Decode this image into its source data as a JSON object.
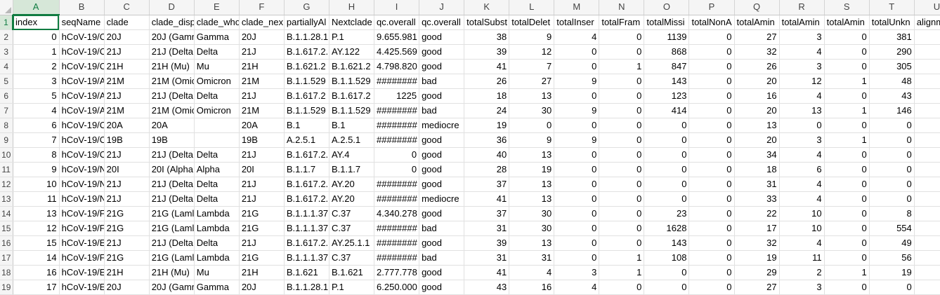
{
  "columns": [
    "A",
    "B",
    "C",
    "D",
    "E",
    "F",
    "G",
    "H",
    "I",
    "J",
    "K",
    "L",
    "M",
    "N",
    "O",
    "P",
    "Q",
    "R",
    "S",
    "T",
    "U"
  ],
  "selected_column": "A",
  "selected_row": "1",
  "rows": [
    {
      "n": "1",
      "cells": [
        "index",
        "seqName",
        "clade",
        "clade_disp",
        "clade_who",
        "clade_nex",
        "partiallyAl",
        "Nextclade",
        "qc.overall",
        "qc.overall",
        "totalSubst",
        "totalDelet",
        "totalInser",
        "totalFram",
        "totalMissi",
        "totalNonA",
        "totalAmin",
        "totalAmin",
        "totalAmin",
        "totalUnkn",
        "alignm"
      ]
    },
    {
      "n": "2",
      "cells": [
        "0",
        "hCoV-19/C",
        "20J",
        "20J (Gamr",
        "Gamma",
        "20J",
        "B.1.1.28.1",
        "P.1",
        "9.655.981",
        "good",
        "38",
        "9",
        "4",
        "0",
        "1139",
        "0",
        "27",
        "3",
        "0",
        "381",
        "87"
      ]
    },
    {
      "n": "3",
      "cells": [
        "1",
        "hCoV-19/C",
        "21J",
        "21J (Delta",
        "Delta",
        "21J",
        "B.1.617.2.",
        "AY.122",
        "4.425.569",
        "good",
        "39",
        "12",
        "0",
        "0",
        "868",
        "0",
        "32",
        "4",
        "0",
        "290",
        "88"
      ]
    },
    {
      "n": "4",
      "cells": [
        "2",
        "hCoV-19/C",
        "21H",
        "21H (Mu)",
        "Mu",
        "21H",
        "B.1.621.2",
        "B.1.621.2",
        "4.798.820",
        "good",
        "41",
        "7",
        "0",
        "1",
        "847",
        "0",
        "26",
        "3",
        "0",
        "305",
        "88"
      ]
    },
    {
      "n": "5",
      "cells": [
        "3",
        "hCoV-19/A",
        "21M",
        "21M (Omic",
        "Omicron",
        "21M",
        "B.1.1.529",
        "B.1.1.529",
        "########",
        "bad",
        "26",
        "27",
        "9",
        "0",
        "143",
        "0",
        "20",
        "12",
        "1",
        "48",
        "89"
      ]
    },
    {
      "n": "6",
      "cells": [
        "5",
        "hCoV-19/A",
        "21J",
        "21J (Delta",
        "Delta",
        "21J",
        "B.1.617.2",
        "B.1.617.2",
        "1225",
        "good",
        "18",
        "13",
        "0",
        "0",
        "123",
        "0",
        "16",
        "4",
        "0",
        "43",
        "89"
      ]
    },
    {
      "n": "7",
      "cells": [
        "4",
        "hCoV-19/A",
        "21M",
        "21M (Omic",
        "Omicron",
        "21M",
        "B.1.1.529",
        "B.1.1.529",
        "########",
        "bad",
        "24",
        "30",
        "9",
        "0",
        "414",
        "0",
        "20",
        "13",
        "1",
        "146",
        "88"
      ]
    },
    {
      "n": "8",
      "cells": [
        "6",
        "hCoV-19/C",
        "20A",
        "20A",
        "",
        "20A",
        "B.1",
        "B.1",
        "########",
        "mediocre",
        "19",
        "0",
        "0",
        "0",
        "0",
        "0",
        "13",
        "0",
        "0",
        "0",
        "89"
      ]
    },
    {
      "n": "9",
      "cells": [
        "7",
        "hCoV-19/C",
        "19B",
        "19B",
        "",
        "19B",
        "A.2.5.1",
        "A.2.5.1",
        "########",
        "good",
        "36",
        "9",
        "9",
        "0",
        "0",
        "0",
        "20",
        "3",
        "1",
        "0",
        "89"
      ]
    },
    {
      "n": "10",
      "cells": [
        "8",
        "hCoV-19/C",
        "21J",
        "21J (Delta",
        "Delta",
        "21J",
        "B.1.617.2.",
        "AY.4",
        "0",
        "good",
        "40",
        "13",
        "0",
        "0",
        "0",
        "0",
        "34",
        "4",
        "0",
        "0",
        "89"
      ]
    },
    {
      "n": "11",
      "cells": [
        "9",
        "hCoV-19/N",
        "20I",
        "20I (Alpha",
        "Alpha",
        "20I",
        "B.1.1.7",
        "B.1.1.7",
        "0",
        "good",
        "28",
        "19",
        "0",
        "0",
        "0",
        "0",
        "18",
        "6",
        "0",
        "0",
        "89"
      ]
    },
    {
      "n": "12",
      "cells": [
        "10",
        "hCoV-19/N",
        "21J",
        "21J (Delta",
        "Delta",
        "21J",
        "B.1.617.2.",
        "AY.20",
        "########",
        "good",
        "37",
        "13",
        "0",
        "0",
        "0",
        "0",
        "31",
        "4",
        "0",
        "0",
        "89"
      ]
    },
    {
      "n": "13",
      "cells": [
        "11",
        "hCoV-19/N",
        "21J",
        "21J (Delta",
        "Delta",
        "21J",
        "B.1.617.2.",
        "AY.20",
        "########",
        "mediocre",
        "41",
        "13",
        "0",
        "0",
        "0",
        "0",
        "33",
        "4",
        "0",
        "0",
        "89"
      ]
    },
    {
      "n": "14",
      "cells": [
        "13",
        "hCoV-19/F",
        "21G",
        "21G (Laml",
        "Lambda",
        "21G",
        "B.1.1.1.37",
        "C.37",
        "4.340.278",
        "good",
        "37",
        "30",
        "0",
        "0",
        "23",
        "0",
        "22",
        "10",
        "0",
        "8",
        "89"
      ]
    },
    {
      "n": "15",
      "cells": [
        "12",
        "hCoV-19/F",
        "21G",
        "21G (Laml",
        "Lambda",
        "21G",
        "B.1.1.1.37",
        "C.37",
        "########",
        "bad",
        "31",
        "30",
        "0",
        "0",
        "1628",
        "0",
        "17",
        "10",
        "0",
        "554",
        "87"
      ]
    },
    {
      "n": "16",
      "cells": [
        "15",
        "hCoV-19/E",
        "21J",
        "21J (Delta",
        "Delta",
        "21J",
        "B.1.617.2.",
        "AY.25.1.1",
        "########",
        "good",
        "39",
        "13",
        "0",
        "0",
        "143",
        "0",
        "32",
        "4",
        "0",
        "49",
        "89"
      ]
    },
    {
      "n": "17",
      "cells": [
        "14",
        "hCoV-19/F",
        "21G",
        "21G (Laml",
        "Lambda",
        "21G",
        "B.1.1.1.37",
        "C.37",
        "########",
        "bad",
        "31",
        "31",
        "0",
        "1",
        "108",
        "0",
        "19",
        "11",
        "0",
        "56",
        "89"
      ]
    },
    {
      "n": "18",
      "cells": [
        "16",
        "hCoV-19/E",
        "21H",
        "21H (Mu)",
        "Mu",
        "21H",
        "B.1.621",
        "B.1.621",
        "2.777.778",
        "good",
        "41",
        "4",
        "3",
        "1",
        "0",
        "0",
        "29",
        "2",
        "1",
        "19",
        "89"
      ]
    },
    {
      "n": "19",
      "cells": [
        "17",
        "hCoV-19/E",
        "20J",
        "20J (Gamr",
        "Gamma",
        "20J",
        "B.1.1.28.1",
        "P.1",
        "6.250.000",
        "good",
        "43",
        "16",
        "4",
        "0",
        "0",
        "0",
        "27",
        "3",
        "0",
        "0",
        "89"
      ]
    }
  ]
}
